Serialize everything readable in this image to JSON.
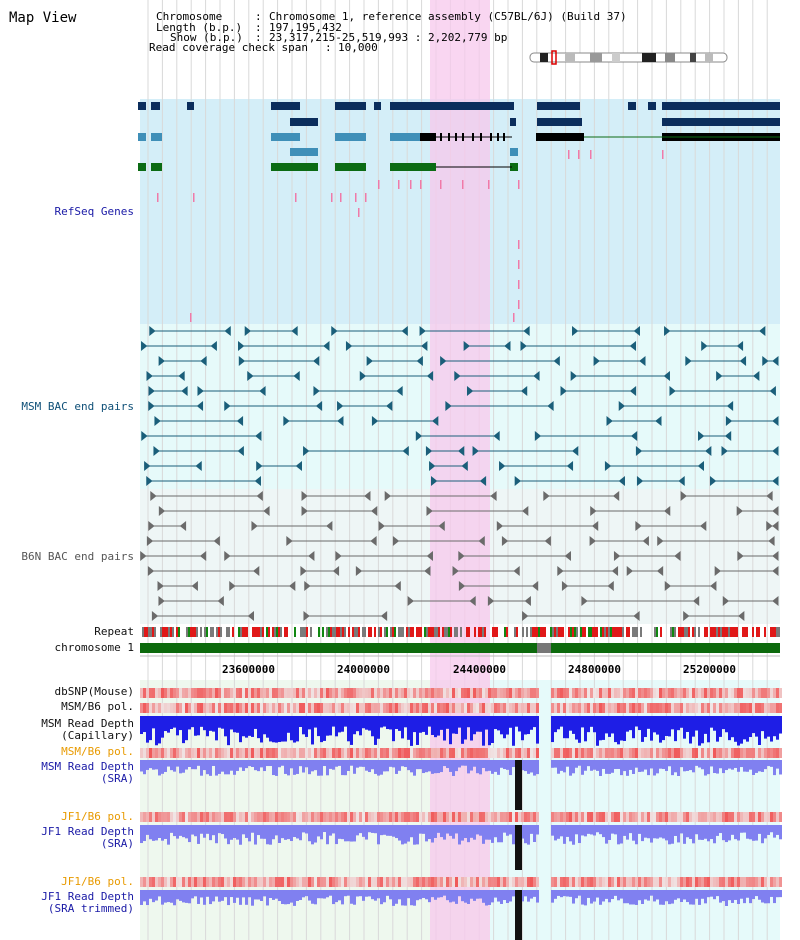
{
  "header": {
    "page_title": "Map View",
    "chromosome_label": "Chromosome",
    "chromosome_value": "Chromosome 1, reference assembly (C57BL/6J) (Build 37)",
    "length_label": "Length (b.p.)",
    "length_value": "197,195,432",
    "show_label": "Show (b.p.)",
    "show_value": "23,317,215-25,519,993 : 2,202,779 bp",
    "coverage_label": "Read coverage check span",
    "coverage_value": "10,000"
  },
  "tracks": {
    "refseq": "RefSeq Genes",
    "msm_bac": "MSM BAC end pairs",
    "b6n_bac": "B6N BAC end pairs",
    "repeat": "Repeat",
    "chromosome": "chromosome 1",
    "dbsnp": "dbSNP(Mouse)",
    "msm_b6_pol_1": "MSM/B6 pol.",
    "msm_read_depth_cap_1": "MSM Read Depth",
    "msm_read_depth_cap_2": "(Capillary)",
    "msm_b6_pol_2": "MSM/B6 pol.",
    "msm_read_depth_sra_1": "MSM Read Depth",
    "msm_read_depth_sra_2": "(SRA)",
    "jf1_b6_pol_1": "JF1/B6 pol.",
    "jf1_read_depth_1": "JF1 Read Depth",
    "jf1_read_depth_2": "(SRA)",
    "jf1_b6_pol_2": "JF1/B6 pol.",
    "jf1_read_depth_trim_1": "JF1 Read Depth",
    "jf1_read_depth_trim_2": "(SRA trimmed)"
  },
  "axis": {
    "ticks": [
      "23600000",
      "24000000",
      "24400000",
      "24800000",
      "25200000"
    ]
  },
  "colors": {
    "refseq_bg": "#d4eef8",
    "bac_bg": "#e6fafa",
    "highlight": "#fbd5f0",
    "gene_dark": "#0b2d5c",
    "gene_mid": "#3f8fb8",
    "gene_green": "#0b6b14",
    "bac_teal": "#1b5f7a",
    "bac_gray": "#6b6b6b",
    "snp_red": "#f05050",
    "depth_blue": "#1e1ee6",
    "depth_light": "#8080f0"
  }
}
